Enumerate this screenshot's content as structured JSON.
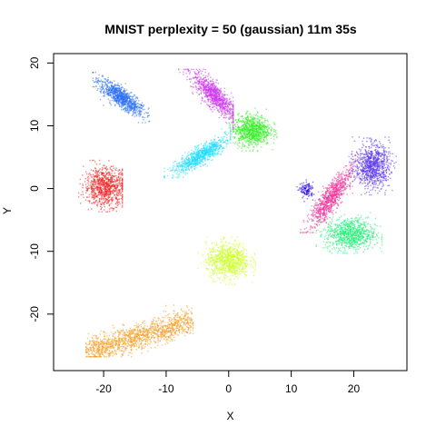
{
  "chart_data": {
    "type": "scatter",
    "title": "MNIST perplexity = 50 (gaussian) 11m 35s",
    "xlabel": "X",
    "ylabel": "Y",
    "xlim": [
      -28,
      28.5
    ],
    "ylim": [
      -29,
      21.5
    ],
    "x_ticks": [
      -20,
      -10,
      0,
      10,
      20
    ],
    "y_ticks": [
      -20,
      -10,
      0,
      10,
      20
    ],
    "x_tick_labels": [
      "-20",
      "-10",
      "0",
      "10",
      "20"
    ],
    "y_tick_labels": [
      "-20",
      "-10",
      "0",
      "10",
      "20"
    ],
    "grid": false,
    "legend": "none",
    "clusters": [
      {
        "color": "#2a6ff2",
        "center": [
          -17.2,
          14.5
        ],
        "extent": [
          -21.2,
          -13.2,
          11.0,
          18.0
        ],
        "shape": "blob-diagonal-down"
      },
      {
        "color": "#cc33ee",
        "center": [
          -2.3,
          14.8
        ],
        "extent": [
          -7.5,
          0.2,
          9.5,
          18.5
        ],
        "shape": "blob-diagonal-down"
      },
      {
        "color": "#33ee22",
        "center": [
          3.7,
          9.3
        ],
        "extent": [
          0.2,
          7.2,
          6.5,
          12.3
        ],
        "shape": "blob"
      },
      {
        "color": "#22ddff",
        "center": [
          -4.5,
          5.3
        ],
        "extent": [
          -9.8,
          -0.2,
          2.2,
          9.0
        ],
        "shape": "blob-diagonal-up"
      },
      {
        "color": "#ee2222",
        "center": [
          -19.7,
          0.3
        ],
        "extent": [
          -25.5,
          -17.5,
          -3.2,
          4.0
        ],
        "shape": "blob"
      },
      {
        "color": "#2200ee",
        "center": [
          12.5,
          -0.3
        ],
        "extent": [
          11.3,
          13.8,
          -1.8,
          1.2
        ],
        "shape": "small-blob"
      },
      {
        "color": "#ee3399",
        "center": [
          16.3,
          -1.5
        ],
        "extent": [
          12.0,
          19.8,
          -6.5,
          4.8
        ],
        "shape": "blob-diagonal-up"
      },
      {
        "color": "#5533ee",
        "center": [
          23.0,
          3.6
        ],
        "extent": [
          19.8,
          26.3,
          -0.5,
          7.7
        ],
        "shape": "blob"
      },
      {
        "color": "#22ee77",
        "center": [
          19.5,
          -7.3
        ],
        "extent": [
          14.5,
          24.0,
          -9.8,
          -3.8
        ],
        "shape": "blob"
      },
      {
        "color": "#ccff22",
        "center": [
          -0.1,
          -11.5
        ],
        "extent": [
          -4.4,
          3.8,
          -14.8,
          -8.2
        ],
        "shape": "blob"
      },
      {
        "color": "#f39c22",
        "center": [
          -14.3,
          -24.0
        ],
        "extent": [
          -22.3,
          -6.2,
          -26.3,
          -19.0
        ],
        "shape": "elongated-band"
      }
    ]
  }
}
